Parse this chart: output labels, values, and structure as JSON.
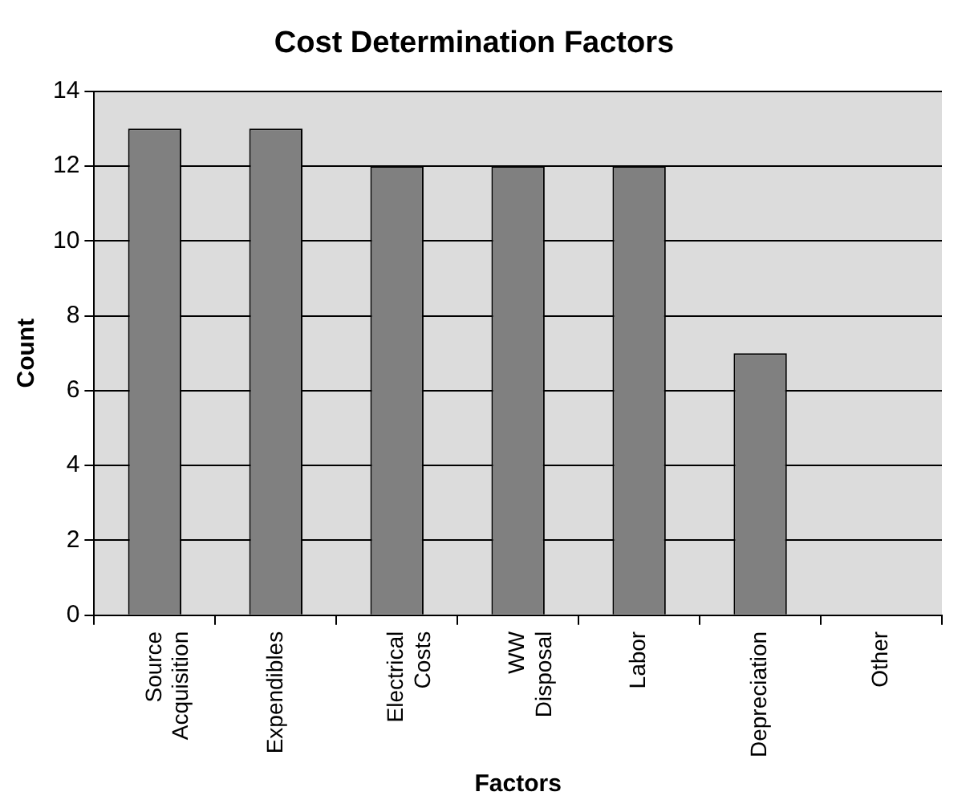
{
  "chart_data": {
    "type": "bar",
    "title": "Cost Determination Factors",
    "xlabel": "Factors",
    "ylabel": "Count",
    "categories": [
      "Source Acquisition",
      "Expendibles",
      "Electrical Costs",
      "WW Disposal",
      "Labor",
      "Depreciation",
      "Other"
    ],
    "values": [
      13,
      13,
      12,
      12,
      12,
      7,
      0
    ],
    "color": "#808080",
    "ylim": [
      0,
      14
    ],
    "yticks": [
      0,
      2,
      4,
      6,
      8,
      10,
      12,
      14
    ],
    "grid": "y",
    "legend": false
  }
}
